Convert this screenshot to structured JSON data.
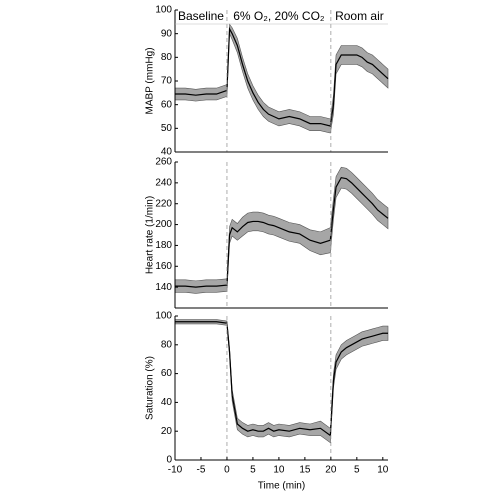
{
  "chart_data": [
    {
      "type": "line",
      "ylabel": "MABP (mmHg)",
      "phases": [
        "Baseline",
        "6% O₂, 20% CO₂",
        "Room air"
      ],
      "vlines": [
        0,
        20
      ],
      "xlim": [
        -10,
        31
      ],
      "ylim": [
        40,
        100
      ],
      "yticks": [
        40,
        50,
        60,
        70,
        80,
        90,
        100
      ],
      "x": [
        -10,
        -8,
        -6,
        -4,
        -2,
        0,
        0.5,
        1,
        2,
        3,
        4,
        5,
        6,
        7,
        8,
        9,
        10,
        12,
        14,
        16,
        18,
        19.9,
        20.5,
        21,
        22,
        23,
        24,
        25,
        26,
        27,
        28,
        29,
        30,
        31
      ],
      "series": [
        {
          "color": "#000000",
          "band_color": "#a6a6a6",
          "values": [
            64.5,
            64.5,
            64,
            64.5,
            64.5,
            66,
            92,
            90,
            85,
            77,
            70,
            65,
            61,
            58,
            56,
            55,
            54,
            55,
            54,
            52,
            52,
            51,
            60,
            77,
            81,
            81,
            81,
            81,
            80,
            78,
            77,
            75,
            73,
            71
          ],
          "error": [
            2.5,
            2.5,
            2.5,
            2.5,
            2.5,
            2.5,
            2,
            2.5,
            3,
            3,
            3,
            3,
            3,
            3,
            3,
            3,
            3,
            3,
            3,
            3,
            3,
            3,
            4,
            4,
            4,
            4,
            4,
            4,
            4,
            4,
            4,
            4,
            4,
            4
          ]
        }
      ]
    },
    {
      "type": "line",
      "ylabel": "Heart rate (1/min)",
      "vlines": [
        0,
        20
      ],
      "xlim": [
        -10,
        31
      ],
      "ylim": [
        120,
        260
      ],
      "yticks": [
        140,
        160,
        180,
        200,
        220,
        240,
        260
      ],
      "x": [
        -10,
        -8,
        -6,
        -4,
        -2,
        0,
        0.5,
        1,
        2,
        3,
        4,
        5,
        6,
        7,
        8,
        9,
        10,
        12,
        14,
        16,
        18,
        19.9,
        20.5,
        21,
        22,
        23,
        24,
        25,
        26,
        27,
        28,
        29,
        30,
        31
      ],
      "series": [
        {
          "color": "#000000",
          "band_color": "#a6a6a6",
          "values": [
            141,
            141,
            140,
            141,
            141,
            142,
            190,
            197,
            193,
            198,
            202,
            203,
            203,
            202,
            200,
            199,
            197,
            193,
            191,
            185,
            182,
            185,
            215,
            236,
            245,
            244,
            240,
            235,
            230,
            225,
            220,
            214,
            210,
            206
          ],
          "error": [
            6,
            6,
            6,
            6,
            6,
            6,
            8,
            8,
            8,
            9,
            9,
            9,
            9,
            9,
            9,
            9,
            9,
            9,
            9,
            10,
            11,
            12,
            10,
            10,
            10,
            10,
            10,
            10,
            10,
            10,
            10,
            10,
            10,
            10
          ]
        }
      ]
    },
    {
      "type": "line",
      "ylabel": "Saturation (%)",
      "xlabel": "Time (min)",
      "vlines": [
        0,
        20
      ],
      "xlim": [
        -10,
        31
      ],
      "ylim": [
        0,
        100
      ],
      "yticks": [
        0,
        20,
        40,
        60,
        80,
        100
      ],
      "xticks": [
        -10,
        -5,
        0,
        5,
        10,
        15,
        20,
        {
          "value": 25,
          "label": "5"
        },
        {
          "value": 30,
          "label": "10"
        }
      ],
      "x": [
        -10,
        -8,
        -6,
        -4,
        -2,
        0,
        0.5,
        1,
        2,
        3,
        4,
        5,
        6,
        7,
        8,
        9,
        10,
        12,
        14,
        16,
        18,
        19.9,
        20.5,
        21,
        22,
        23,
        24,
        25,
        26,
        27,
        28,
        29,
        30,
        31
      ],
      "series": [
        {
          "color": "#000000",
          "band_color": "#a6a6a6",
          "values": [
            96,
            96,
            96,
            96,
            96,
            95,
            75,
            45,
            25,
            22,
            20,
            21,
            20,
            20,
            22,
            20,
            21,
            20,
            22,
            21,
            22,
            17,
            55,
            68,
            75,
            78,
            80,
            82,
            84,
            85,
            86,
            87,
            88,
            88
          ],
          "error": [
            1.5,
            1.5,
            1.5,
            1.5,
            1.5,
            1.5,
            3,
            4,
            4,
            4,
            4,
            4,
            4,
            4,
            4,
            4,
            4,
            4,
            4,
            4,
            5,
            5,
            5,
            5,
            5,
            5,
            5,
            5,
            5,
            5,
            5,
            5,
            5,
            5
          ]
        }
      ]
    }
  ]
}
